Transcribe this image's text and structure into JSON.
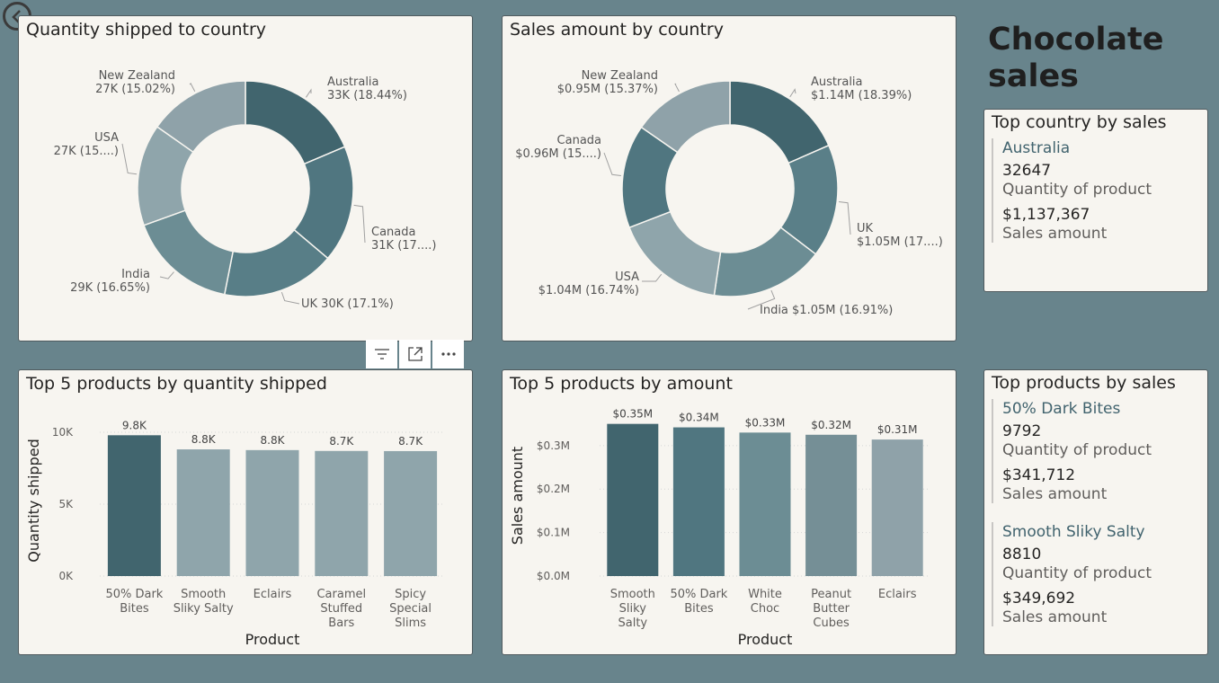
{
  "main_title": "Chocolate sales",
  "toolbar": {
    "icons": [
      "filter-icon",
      "focus-mode-icon",
      "more-options-icon"
    ]
  },
  "donut_quantity": {
    "title": "Quantity shipped to country",
    "chart_data": {
      "type": "pie",
      "title": "Quantity shipped to country",
      "slices": [
        {
          "label": "Australia",
          "value": 33,
          "text": [
            "Australia",
            "33K (18.44%)"
          ],
          "percent": 18.44
        },
        {
          "label": "Canada",
          "value": 31,
          "text": [
            "Canada",
            "31K (17....)"
          ],
          "percent": 17.05
        },
        {
          "label": "UK",
          "value": 30,
          "text": [
            "UK 30K (17.1%)"
          ],
          "percent": 17.1
        },
        {
          "label": "India",
          "value": 29,
          "text": [
            "India",
            "29K (16.65%)"
          ],
          "percent": 16.65
        },
        {
          "label": "USA",
          "value": 27,
          "text": [
            "USA",
            "27K (15....)"
          ],
          "percent": 15.74
        },
        {
          "label": "New Zealand",
          "value": 27,
          "text": [
            "New Zealand",
            "27K (15.02%)"
          ],
          "percent": 15.02
        }
      ],
      "colors": [
        "#41656e",
        "#507680",
        "#587e87",
        "#6c8d94",
        "#8fa5ab",
        "#8fa2a9"
      ]
    }
  },
  "donut_sales": {
    "title": "Sales amount by country",
    "chart_data": {
      "type": "pie",
      "title": "Sales amount by country",
      "slices": [
        {
          "label": "Australia",
          "value": 1.14,
          "text": [
            "Australia",
            "$1.14M (18.39%)"
          ],
          "percent": 18.39
        },
        {
          "label": "UK",
          "value": 1.05,
          "text": [
            "UK",
            "$1.05M (17....)"
          ],
          "percent": 17.04
        },
        {
          "label": "India",
          "value": 1.05,
          "text": [
            "India $1.05M (16.91%)"
          ],
          "percent": 16.91
        },
        {
          "label": "USA",
          "value": 1.04,
          "text": [
            "USA",
            "$1.04M (16.74%)"
          ],
          "percent": 16.74
        },
        {
          "label": "Canada",
          "value": 0.96,
          "text": [
            "Canada",
            "$0.96M (15....)"
          ],
          "percent": 15.55
        },
        {
          "label": "New Zealand",
          "value": 0.95,
          "text": [
            "New Zealand",
            "$0.95M (15.37%)"
          ],
          "percent": 15.37
        }
      ],
      "colors": [
        "#41656e",
        "#5a7f88",
        "#6c8d94",
        "#8fa5ab",
        "#507680",
        "#8fa2a9"
      ]
    }
  },
  "bar_quantity": {
    "title": "Top 5 products by quantity shipped",
    "chart_data": {
      "type": "bar",
      "title": "Top 5 products by quantity shipped",
      "xlabel": "Product",
      "ylabel": "Quantity shipped",
      "categories": [
        [
          "50% Dark",
          "Bites"
        ],
        [
          "Smooth",
          "Sliky Salty"
        ],
        [
          "Eclairs"
        ],
        [
          "Caramel",
          "Stuffed",
          "Bars"
        ],
        [
          "Spicy",
          "Special",
          "Slims"
        ]
      ],
      "values": [
        9792,
        8810,
        8760,
        8700,
        8690
      ],
      "data_labels": [
        "9.8K",
        "8.8K",
        "8.8K",
        "8.7K",
        "8.7K"
      ],
      "yticks": [
        0,
        5000,
        10000
      ],
      "ytick_labels": [
        "0K",
        "5K",
        "10K"
      ],
      "ylim": [
        0,
        10500
      ],
      "colors": [
        "#41656e",
        "#8fa5ab",
        "#8fa5ab",
        "#8fa5ab",
        "#8fa5ab"
      ]
    }
  },
  "bar_sales": {
    "title": "Top 5 products by amount",
    "chart_data": {
      "type": "bar",
      "title": "Top 5 products by amount",
      "xlabel": "Product",
      "ylabel": "Sales amount",
      "categories": [
        [
          "Smooth",
          "Sliky",
          "Salty"
        ],
        [
          "50% Dark",
          "Bites"
        ],
        [
          "White",
          "Choc"
        ],
        [
          "Peanut",
          "Butter",
          "Cubes"
        ],
        [
          "Eclairs"
        ]
      ],
      "values": [
        0.35,
        0.342,
        0.33,
        0.325,
        0.314
      ],
      "data_labels": [
        "$0.35M",
        "$0.34M",
        "$0.33M",
        "$0.32M",
        "$0.31M"
      ],
      "yticks": [
        0,
        0.1,
        0.2,
        0.3
      ],
      "ytick_labels": [
        "$0.0M",
        "$0.1M",
        "$0.2M",
        "$0.3M"
      ],
      "ylim": [
        0,
        0.37
      ],
      "colors": [
        "#41656e",
        "#507680",
        "#6c8d94",
        "#758f96",
        "#8fa2a9"
      ]
    }
  },
  "top_country": {
    "title": "Top country by sales",
    "items": [
      {
        "name": "Australia",
        "quantity": "32647",
        "quantity_label": "Quantity of product",
        "amount": "$1,137,367",
        "amount_label": "Sales amount"
      }
    ]
  },
  "top_products": {
    "title": "Top products by sales",
    "items": [
      {
        "name": "50% Dark Bites",
        "quantity": "9792",
        "quantity_label": "Quantity of product",
        "amount": "$341,712",
        "amount_label": "Sales amount"
      },
      {
        "name": "Smooth Sliky Salty",
        "quantity": "8810",
        "quantity_label": "Quantity of product",
        "amount": "$349,692",
        "amount_label": "Sales amount"
      }
    ]
  }
}
